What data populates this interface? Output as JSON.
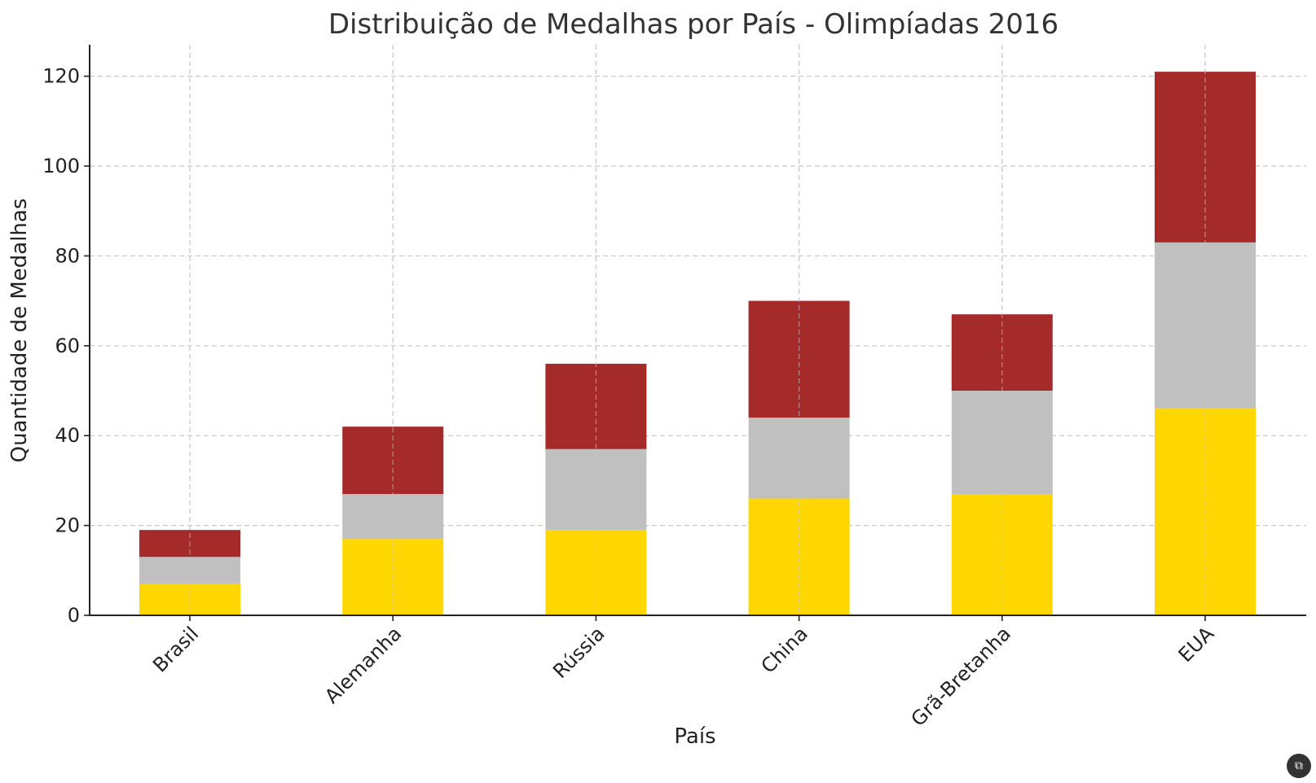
{
  "chart_data": {
    "type": "bar",
    "stacked": true,
    "title": "Distribuição de Medalhas por País - Olimpíadas 2016",
    "xlabel": "País",
    "ylabel": "Quantidade de Medalhas",
    "categories": [
      "Brasil",
      "Alemanha",
      "Rússia",
      "China",
      "Grã-Bretanha",
      "EUA"
    ],
    "series": [
      {
        "color": "#FFD700",
        "values": [
          7,
          17,
          19,
          26,
          27,
          46
        ]
      },
      {
        "color": "#C0C0C0",
        "values": [
          6,
          10,
          18,
          18,
          23,
          37
        ]
      },
      {
        "color": "#A52A2A",
        "values": [
          6,
          15,
          19,
          26,
          17,
          38
        ]
      }
    ],
    "ylim": [
      0,
      127
    ],
    "yticks": [
      0,
      20,
      40,
      60,
      80,
      100,
      120
    ],
    "grid": true,
    "legend": "none"
  },
  "corner_icon": "screenshot-icon"
}
